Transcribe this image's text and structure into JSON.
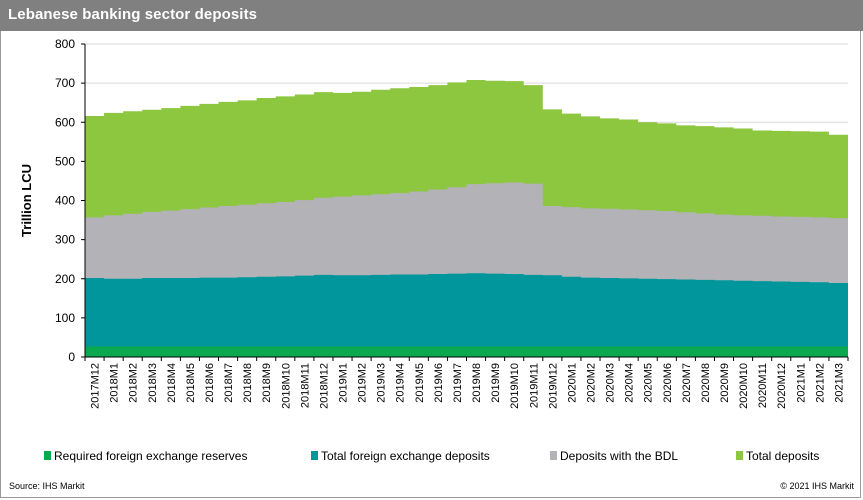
{
  "title": "Lebanese banking sector deposits",
  "footer": {
    "source": "Source: IHS Markit",
    "copyright": "© 2021 IHS Markit"
  },
  "chart_data": {
    "type": "area",
    "stacked": false,
    "ylabel": "Trillion LCU",
    "ylim": [
      0,
      800
    ],
    "yticks": [
      0,
      100,
      200,
      300,
      400,
      500,
      600,
      700,
      800
    ],
    "categories": [
      "2017M12",
      "2018M1",
      "2018M2",
      "2018M3",
      "2018M4",
      "2018M5",
      "2018M6",
      "2018M7",
      "2018M8",
      "2018M9",
      "2018M10",
      "2018M11",
      "2018M12",
      "2019M1",
      "2019M2",
      "2019M3",
      "2019M4",
      "2019M5",
      "2019M6",
      "2019M7",
      "2019M8",
      "2019M9",
      "2019M10",
      "2019M11",
      "2019M12",
      "2020M1",
      "2020M2",
      "2020M3",
      "2020M4",
      "2020M5",
      "2020M6",
      "2020M7",
      "2020M8",
      "2020M9",
      "2020M10",
      "2020M11",
      "2020M12",
      "2021M1",
      "2021M2",
      "2021M3"
    ],
    "legend_position": "bottom",
    "series": [
      {
        "name": "Total deposits",
        "color": "#8dc63f",
        "values": [
          616,
          624,
          628,
          632,
          636,
          642,
          647,
          652,
          656,
          662,
          666,
          671,
          677,
          675,
          678,
          683,
          687,
          690,
          695,
          702,
          708,
          706,
          705,
          695,
          633,
          622,
          615,
          610,
          607,
          600,
          597,
          592,
          590,
          587,
          584,
          579,
          578,
          577,
          576,
          568
        ]
      },
      {
        "name": "Deposits with the BDL",
        "color": "#b3b3b7",
        "values": [
          357,
          362,
          366,
          371,
          374,
          378,
          382,
          386,
          389,
          393,
          396,
          401,
          407,
          410,
          413,
          416,
          419,
          423,
          428,
          434,
          442,
          444,
          446,
          443,
          386,
          383,
          380,
          379,
          377,
          375,
          373,
          370,
          367,
          364,
          362,
          361,
          359,
          358,
          357,
          355
        ]
      },
      {
        "name": "Total foreign exchange deposits",
        "color": "#00969b",
        "values": [
          202,
          200,
          200,
          202,
          202,
          202,
          203,
          203,
          204,
          205,
          206,
          208,
          210,
          209,
          209,
          210,
          211,
          211,
          212,
          213,
          214,
          213,
          212,
          210,
          209,
          205,
          203,
          202,
          201,
          200,
          199,
          198,
          197,
          196,
          195,
          194,
          193,
          192,
          191,
          189
        ]
      },
      {
        "name": "Required foreign exchange reserves",
        "color": "#0aa84f",
        "values": [
          27,
          27,
          27,
          27,
          27,
          27,
          27,
          27,
          27,
          27,
          27,
          27,
          27,
          27,
          27,
          27,
          27,
          27,
          27,
          27,
          27,
          27,
          27,
          27,
          27,
          27,
          27,
          27,
          27,
          27,
          27,
          27,
          27,
          27,
          27,
          27,
          27,
          27,
          27,
          27
        ]
      }
    ],
    "legend_order": [
      "Required foreign exchange reserves",
      "Total foreign exchange deposits",
      "Deposits with the BDL",
      "Total deposits"
    ]
  }
}
